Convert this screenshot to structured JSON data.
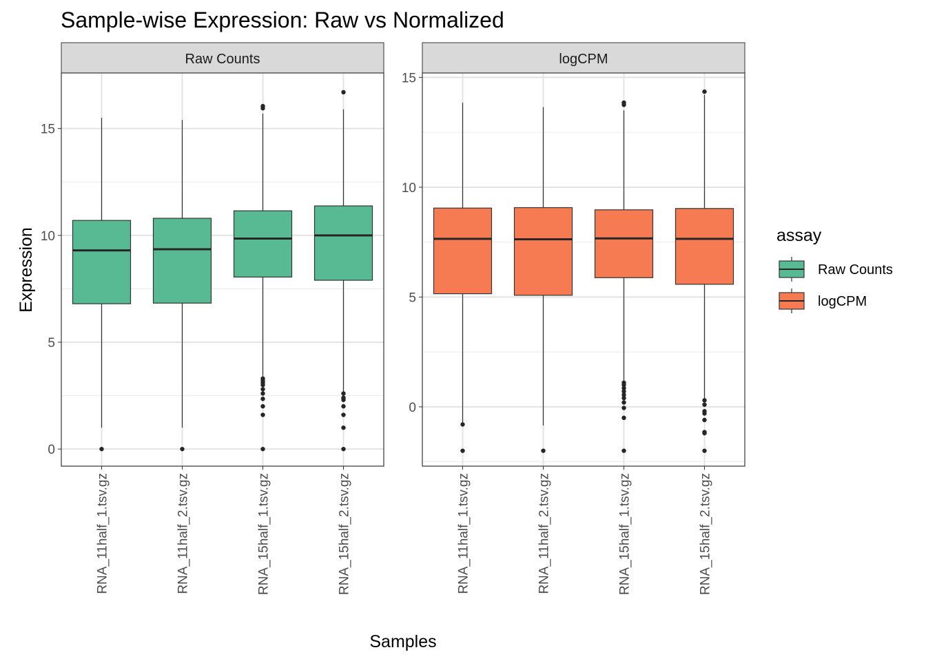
{
  "chart_data": {
    "type": "boxplot",
    "title": "Sample-wise Expression: Raw vs Normalized",
    "xlabel": "Samples",
    "ylabel": "Expression",
    "categories": [
      "RNA_11half_1.tsv.gz",
      "RNA_11half_2.tsv.gz",
      "RNA_15half_1.tsv.gz",
      "RNA_15half_2.tsv.gz"
    ],
    "legend": {
      "title": "assay",
      "placement": "right",
      "items": [
        {
          "label": "Raw Counts",
          "color": "#57BA92"
        },
        {
          "label": "logCPM",
          "color": "#F77B52"
        }
      ]
    },
    "grid": true,
    "panels": [
      {
        "strip": "Raw Counts",
        "color": "#57BA92",
        "ylim": [
          -0.8,
          17.6
        ],
        "yticks": [
          0,
          5,
          10,
          15
        ],
        "yticks_minor": [
          2.5,
          7.5,
          12.5
        ],
        "boxes": [
          {
            "category": "RNA_11half_1.tsv.gz",
            "whisker_low": 1.0,
            "q1": 6.8,
            "median": 9.3,
            "q3": 10.7,
            "whisker_high": 15.5,
            "outliers": [
              0
            ]
          },
          {
            "category": "RNA_11half_2.tsv.gz",
            "whisker_low": 1.0,
            "q1": 6.83,
            "median": 9.35,
            "q3": 10.8,
            "whisker_high": 15.4,
            "outliers": [
              0
            ]
          },
          {
            "category": "RNA_15half_1.tsv.gz",
            "whisker_low": 3.4,
            "q1": 8.05,
            "median": 9.85,
            "q3": 11.15,
            "whisker_high": 15.7,
            "outliers": [
              15.95,
              16.05,
              3.3,
              3.2,
              3.1,
              3.0,
              2.8,
              2.6,
              2.35,
              2.0,
              1.6,
              0
            ]
          },
          {
            "category": "RNA_15half_2.tsv.gz",
            "whisker_low": 2.7,
            "q1": 7.9,
            "median": 10.0,
            "q3": 11.38,
            "whisker_high": 15.9,
            "outliers": [
              16.7,
              2.6,
              2.4,
              2.3,
              2.0,
              1.6,
              1.0,
              0
            ]
          }
        ]
      },
      {
        "strip": "logCPM",
        "color": "#F77B52",
        "ylim": [
          -2.7,
          15.2
        ],
        "yticks": [
          0,
          5,
          10,
          15
        ],
        "yticks_minor": [
          -2.5,
          2.5,
          7.5,
          12.5
        ],
        "boxes": [
          {
            "category": "RNA_11half_1.tsv.gz",
            "whisker_low": -0.8,
            "q1": 5.15,
            "median": 7.65,
            "q3": 9.05,
            "whisker_high": 13.85,
            "outliers": [
              -0.8,
              -2.0
            ]
          },
          {
            "category": "RNA_11half_2.tsv.gz",
            "whisker_low": -0.85,
            "q1": 5.08,
            "median": 7.63,
            "q3": 9.07,
            "whisker_high": 13.65,
            "outliers": [
              -2.0
            ]
          },
          {
            "category": "RNA_15half_1.tsv.gz",
            "whisker_low": 1.2,
            "q1": 5.88,
            "median": 7.67,
            "q3": 8.97,
            "whisker_high": 13.5,
            "outliers": [
              13.75,
              13.85,
              1.1,
              1.0,
              0.85,
              0.7,
              0.55,
              0.4,
              0.2,
              -0.05,
              -0.5,
              -2.0
            ]
          },
          {
            "category": "RNA_15half_2.tsv.gz",
            "whisker_low": 0.4,
            "q1": 5.58,
            "median": 7.65,
            "q3": 9.03,
            "whisker_high": 14.2,
            "outliers": [
              14.35,
              0.3,
              0.1,
              -0.2,
              -0.3,
              -0.6,
              -1.15,
              -1.2,
              -2.0
            ]
          }
        ]
      }
    ]
  }
}
